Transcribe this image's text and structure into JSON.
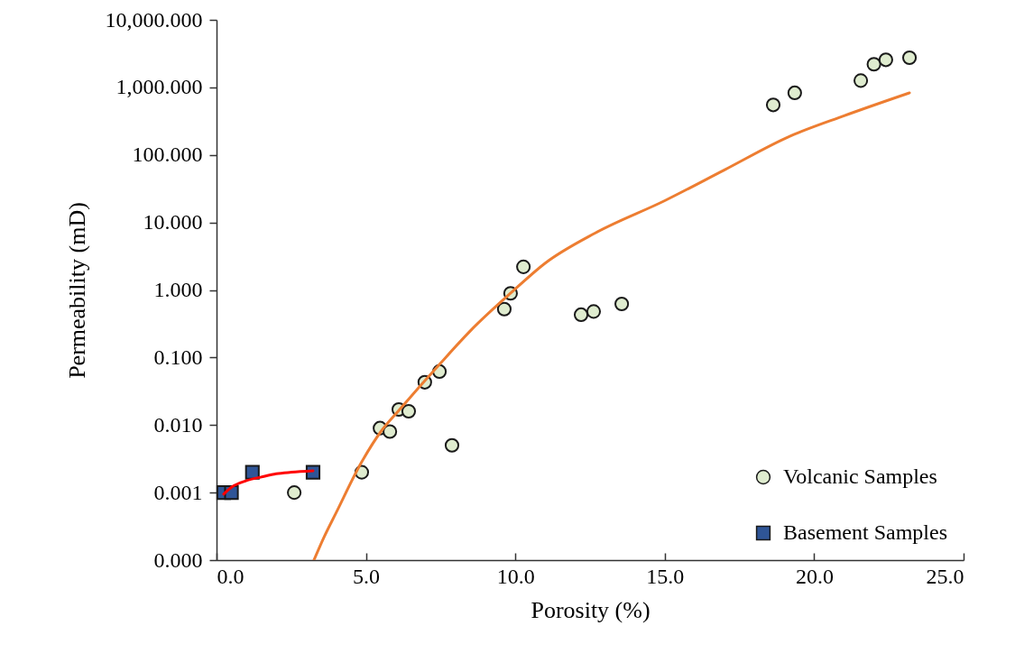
{
  "chart_data": {
    "type": "scatter",
    "xlabel": "Porosity (%)",
    "ylabel": "Permeability (mD)",
    "log": "y",
    "grid": false,
    "legend": "bottom right",
    "xlim": [
      0,
      25
    ],
    "xticks": [
      {
        "value": 0,
        "label": "0.0"
      },
      {
        "value": 5,
        "label": "5.0"
      },
      {
        "value": 10,
        "label": "10.0"
      },
      {
        "value": 15,
        "label": "15.0"
      },
      {
        "value": 20,
        "label": "20.0"
      },
      {
        "value": 25,
        "label": "25.0"
      }
    ],
    "ylim": [
      0.0001,
      10000
    ],
    "yticks": [
      {
        "value": 0.0001,
        "label": "0.000"
      },
      {
        "value": 0.001,
        "label": "0.001"
      },
      {
        "value": 0.01,
        "label": "0.010"
      },
      {
        "value": 0.1,
        "label": "0.100"
      },
      {
        "value": 1,
        "label": "1.000"
      },
      {
        "value": 10,
        "label": "10.000"
      },
      {
        "value": 100,
        "label": "100.000"
      },
      {
        "value": 1000,
        "label": "1,000.000"
      },
      {
        "value": 10000,
        "label": "10,000.000"
      }
    ],
    "series": [
      {
        "type": "line",
        "color": "#ed7d31",
        "x": [
          3.26,
          3.6,
          4.0,
          4.83,
          5.5,
          6.13,
          7.46,
          8.5,
          9.87,
          11,
          12.68,
          15,
          17,
          19.2,
          21,
          23.19
        ],
        "values": [
          0.0001,
          0.00022,
          0.0005,
          0.0027,
          0.008,
          0.017,
          0.079,
          0.25,
          0.92,
          2.5,
          7,
          21,
          60,
          190,
          380,
          830
        ]
      },
      {
        "type": "line",
        "color": "#ff0000",
        "x": [
          0.24,
          0.5,
          1.0,
          1.5,
          2.0,
          2.5,
          3.23
        ],
        "values": [
          0.00095,
          0.0012,
          0.0015,
          0.0017,
          0.0019,
          0.002,
          0.0021
        ]
      },
      {
        "name": "Volcanic Samples",
        "marker": "circle",
        "color": "#dfeccf",
        "x": [
          2.6,
          4.86,
          5.47,
          5.8,
          6.1,
          6.43,
          6.97,
          7.46,
          7.88,
          9.63,
          9.84,
          10.27,
          12.2,
          12.62,
          13.56,
          18.63,
          19.35,
          21.56,
          22.0,
          22.4,
          23.19
        ],
        "values": [
          0.001,
          0.002,
          0.009,
          0.008,
          0.017,
          0.016,
          0.043,
          0.062,
          0.005,
          0.52,
          0.89,
          2.2,
          0.43,
          0.48,
          0.62,
          550,
          830,
          1260,
          2200,
          2560,
          2750
        ]
      },
      {
        "name": "Basement Samples",
        "marker": "square",
        "color": "#2f5597",
        "x": [
          0.24,
          0.5,
          1.2,
          3.23
        ],
        "values": [
          0.001,
          0.001,
          0.002,
          0.002
        ]
      }
    ]
  }
}
